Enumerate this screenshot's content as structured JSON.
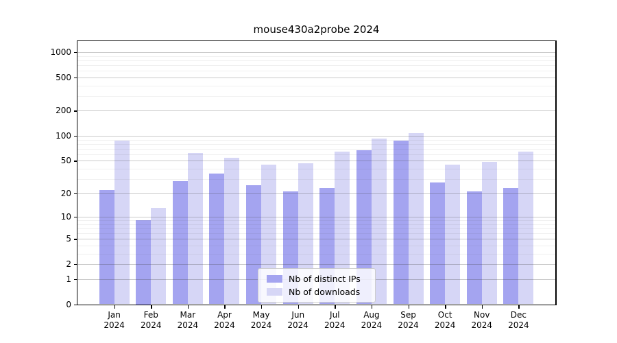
{
  "title": "mouse430a2probe 2024",
  "chart_data": {
    "type": "bar",
    "title": "mouse430a2probe 2024",
    "categories": [
      "Jan",
      "Feb",
      "Mar",
      "Apr",
      "May",
      "Jun",
      "Jul",
      "Aug",
      "Sep",
      "Oct",
      "Nov",
      "Dec"
    ],
    "x_year_label": "2024",
    "series": [
      {
        "name": "Nb of distinct IPs",
        "color": "#a4a4f0",
        "values": [
          22,
          9,
          28,
          35,
          25,
          21,
          23,
          67,
          87,
          27,
          21,
          23
        ]
      },
      {
        "name": "Nb of downloads",
        "color": "#d6d6f6",
        "values": [
          88,
          13,
          62,
          54,
          45,
          47,
          65,
          92,
          108,
          45,
          48,
          65
        ]
      }
    ],
    "xlabel": "",
    "ylabel": "",
    "yscale": "log1p",
    "ylim": [
      0,
      1360
    ],
    "y_ticks": [
      0,
      1,
      2,
      5,
      10,
      20,
      50,
      100,
      200,
      500,
      1000
    ],
    "y_minor_ticks": [
      3,
      4,
      6,
      7,
      8,
      9,
      30,
      40,
      60,
      70,
      80,
      90,
      300,
      400,
      600,
      700,
      800,
      900
    ],
    "grid": true,
    "legend_position": "lower center"
  },
  "colors": {
    "bar_distinct_ips": "#a4a4f0",
    "bar_downloads": "#d6d6f6",
    "major_grid": "rgba(64,64,64,0.28)",
    "minor_grid": "rgba(64,64,64,0.08)",
    "spine": "#000000",
    "background": "#ffffff"
  }
}
